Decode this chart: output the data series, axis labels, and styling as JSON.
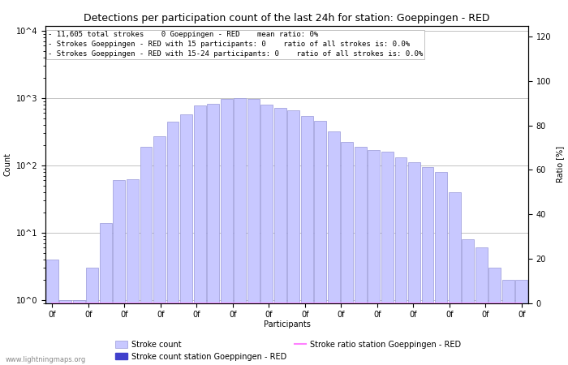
{
  "title": "Detections per participation count of the last 24h for station: Goeppingen - RED",
  "xlabel": "Participants",
  "ylabel_left": "Count",
  "ylabel_right": "Ratio [%]",
  "annotation_lines": [
    "11,605 total strokes    0 Goeppingen - RED    mean ratio: 0%",
    "Strokes Goeppingen - RED with 15 participants: 0    ratio of all strokes is: 0.0%",
    "Strokes Goeppingen - RED with 15-24 participants: 0    ratio of all strokes is: 0.0%"
  ],
  "bar_counts": [
    4,
    1,
    1,
    3,
    14,
    60,
    62,
    190,
    270,
    450,
    580,
    780,
    830,
    970,
    990,
    980,
    800,
    710,
    650,
    550,
    460,
    320,
    220,
    190,
    170,
    160,
    130,
    110,
    95,
    80,
    40,
    8,
    6,
    3,
    2,
    2
  ],
  "bar_color": "#c8c8ff",
  "bar_edge_color": "#9898d8",
  "station_bar_counts": [
    0,
    0,
    0,
    0,
    0,
    0,
    0,
    0,
    0,
    0,
    0,
    0,
    0,
    0,
    0,
    0,
    0,
    0,
    0,
    0,
    0,
    0,
    0,
    0,
    0,
    0,
    0,
    0,
    0,
    0,
    0,
    0,
    0,
    0,
    0,
    0
  ],
  "station_bar_color": "#4040cc",
  "ratio_values": [
    0,
    0,
    0,
    0,
    0,
    0,
    0,
    0,
    0,
    0,
    0,
    0,
    0,
    0,
    0,
    0,
    0,
    0,
    0,
    0,
    0,
    0,
    0,
    0,
    0,
    0,
    0,
    0,
    0,
    0,
    0,
    0,
    0,
    0,
    0,
    0
  ],
  "ratio_color": "#ff80ff",
  "num_bars": 36,
  "ylim_right": [
    0,
    125
  ],
  "yticks_right": [
    0,
    20,
    40,
    60,
    80,
    100,
    120
  ],
  "grid_color": "#aaaaaa",
  "background_color": "#ffffff",
  "title_fontsize": 9,
  "label_fontsize": 7,
  "tick_fontsize": 7,
  "annotation_fontsize": 6.5,
  "watermark": "www.lightningmaps.org",
  "legend_stroke_count": "Stroke count",
  "legend_station_count": "Stroke count station Goeppingen - RED",
  "legend_ratio": "Stroke ratio station Goeppingen - RED"
}
